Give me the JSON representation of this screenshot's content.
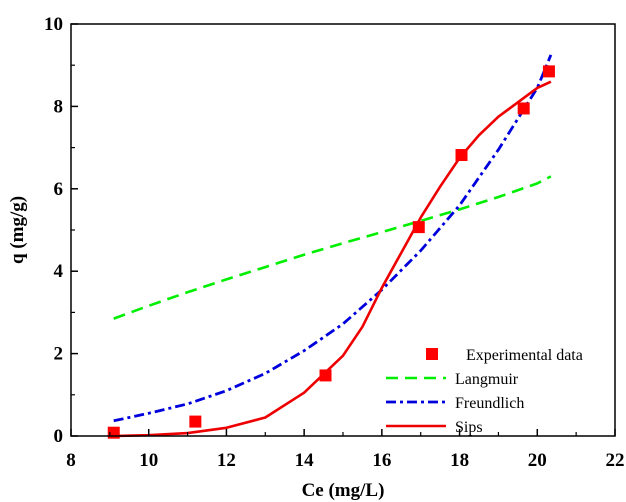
{
  "chart_data": {
    "type": "scatter",
    "xlabel": "Ce (mg/L)",
    "ylabel": "q (mg/g)",
    "xlim": [
      8,
      22
    ],
    "ylim": [
      0,
      10
    ],
    "xticks": [
      8,
      10,
      12,
      14,
      16,
      18,
      20,
      22
    ],
    "yticks": [
      0,
      2,
      4,
      6,
      8,
      10
    ],
    "xtick_labels": [
      "8",
      "10",
      "12",
      "14",
      "16",
      "18",
      "20",
      "22"
    ],
    "ytick_labels": [
      "0",
      "2",
      "4",
      "6",
      "8",
      "10"
    ],
    "grid": false,
    "legend_position": "lower-right",
    "series": [
      {
        "name": "Experimental data",
        "kind": "markers",
        "marker": "square",
        "color": "#ff0000",
        "x": [
          9.1,
          11.2,
          14.55,
          16.95,
          18.05,
          19.65,
          20.3
        ],
        "y": [
          0.08,
          0.35,
          1.47,
          5.07,
          6.82,
          7.95,
          8.85
        ]
      },
      {
        "name": "Langmuir",
        "kind": "line",
        "dash": "dash",
        "color": "#00ee00",
        "x": [
          9.1,
          10,
          11,
          12,
          13,
          14,
          15,
          16,
          17,
          18,
          19,
          20,
          20.35
        ],
        "y": [
          2.85,
          3.16,
          3.49,
          3.8,
          4.1,
          4.4,
          4.68,
          4.95,
          5.22,
          5.5,
          5.8,
          6.13,
          6.3
        ]
      },
      {
        "name": "Freundlich",
        "kind": "line",
        "dash": "dashdot",
        "color": "#0000dd",
        "x": [
          9.1,
          10,
          11,
          12,
          13,
          14,
          15,
          16,
          17,
          18,
          19,
          20,
          20.35
        ],
        "y": [
          0.37,
          0.55,
          0.78,
          1.1,
          1.52,
          2.07,
          2.72,
          3.55,
          4.5,
          5.6,
          6.95,
          8.45,
          9.25
        ]
      },
      {
        "name": "Sips",
        "kind": "line",
        "dash": "solid",
        "color": "#ee0000",
        "x": [
          9.1,
          10,
          11,
          12,
          13,
          14,
          15,
          15.5,
          16,
          16.5,
          17,
          17.5,
          18,
          18.5,
          19,
          19.5,
          20,
          20.35
        ],
        "y": [
          0,
          0.02,
          0.07,
          0.2,
          0.45,
          1.05,
          1.95,
          2.65,
          3.6,
          4.45,
          5.3,
          6.05,
          6.75,
          7.3,
          7.75,
          8.1,
          8.45,
          8.6
        ]
      }
    ],
    "legend": [
      {
        "label": "Experimental data",
        "series": 0
      },
      {
        "label": "Langmuir",
        "series": 1
      },
      {
        "label": "Freundlich",
        "series": 2
      },
      {
        "label": "Sips",
        "series": 3
      }
    ]
  }
}
